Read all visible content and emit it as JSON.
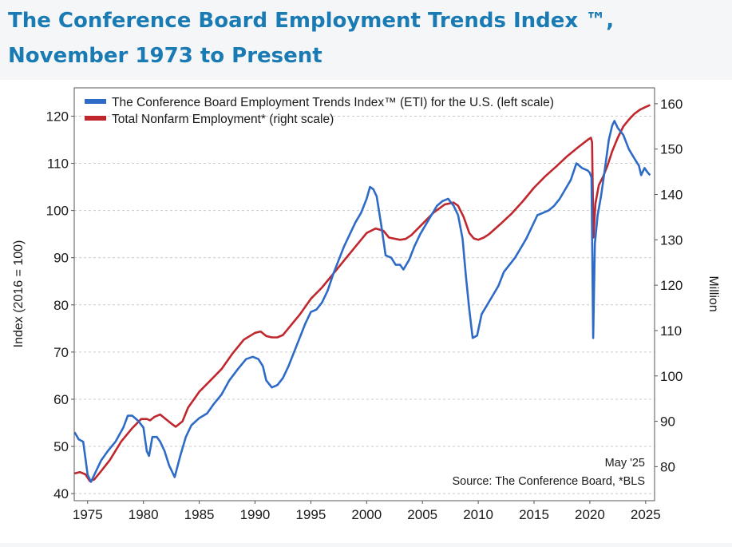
{
  "page": {
    "title": "The Conference Board Employment Trends Index ™, November 1973 to Present"
  },
  "colors": {
    "eti": "#2e6bc6",
    "nonfarm": "#c0272d",
    "title": "#1a7bb4"
  },
  "chart_data": {
    "type": "line",
    "title": "The Conference Board Employment Trends Index ™, November 1973 to Present",
    "ylabel_left": "Index (2016 = 100)",
    "ylabel_right": "Million",
    "xlim": [
      1973.8,
      2025.8
    ],
    "ylim_left": [
      38.5,
      126
    ],
    "ylim_right": [
      72.5,
      163.5
    ],
    "x_ticks": [
      1975,
      1980,
      1985,
      1990,
      1995,
      2000,
      2005,
      2010,
      2015,
      2020,
      2025
    ],
    "y_ticks_left": [
      40,
      50,
      60,
      70,
      80,
      90,
      100,
      110,
      120
    ],
    "y_ticks_right": [
      80,
      90,
      100,
      110,
      120,
      130,
      140,
      150,
      160
    ],
    "grid": "horizontal dashed",
    "legend_position": "top-left",
    "annotation_date": "May '25",
    "annotation_source": "Source: The Conference Board, *BLS",
    "series": [
      {
        "name": "The Conference Board Employment Trends Index™ (ETI) for the U.S. (left scale)",
        "axis": "left",
        "points": [
          [
            1973.83,
            53
          ],
          [
            1974.2,
            51.5
          ],
          [
            1974.6,
            51
          ],
          [
            1975.0,
            44
          ],
          [
            1975.3,
            42.5
          ],
          [
            1975.7,
            44.5
          ],
          [
            1976.2,
            47
          ],
          [
            1976.8,
            49
          ],
          [
            1977.5,
            51
          ],
          [
            1978.2,
            54
          ],
          [
            1978.6,
            56.5
          ],
          [
            1979.0,
            56.5
          ],
          [
            1979.5,
            55.5
          ],
          [
            1980.0,
            54
          ],
          [
            1980.3,
            49
          ],
          [
            1980.5,
            48
          ],
          [
            1980.8,
            52
          ],
          [
            1981.2,
            52
          ],
          [
            1981.5,
            51
          ],
          [
            1981.9,
            49
          ],
          [
            1982.3,
            46
          ],
          [
            1982.8,
            43.5
          ],
          [
            1983.3,
            48
          ],
          [
            1983.8,
            52
          ],
          [
            1984.3,
            54.5
          ],
          [
            1985.0,
            56
          ],
          [
            1985.7,
            57
          ],
          [
            1986.3,
            59
          ],
          [
            1987.0,
            61
          ],
          [
            1987.7,
            64
          ],
          [
            1988.5,
            66.5
          ],
          [
            1989.2,
            68.5
          ],
          [
            1989.8,
            69
          ],
          [
            1990.3,
            68.5
          ],
          [
            1990.7,
            67
          ],
          [
            1991.0,
            64
          ],
          [
            1991.5,
            62.5
          ],
          [
            1992.0,
            63
          ],
          [
            1992.5,
            64.5
          ],
          [
            1993.0,
            67
          ],
          [
            1993.5,
            70
          ],
          [
            1994.0,
            73
          ],
          [
            1994.5,
            76
          ],
          [
            1995.0,
            78.5
          ],
          [
            1995.5,
            79
          ],
          [
            1996.0,
            80.5
          ],
          [
            1996.5,
            83
          ],
          [
            1997.0,
            86.5
          ],
          [
            1997.5,
            89.5
          ],
          [
            1998.0,
            92.5
          ],
          [
            1998.5,
            95
          ],
          [
            1999.0,
            97.5
          ],
          [
            1999.5,
            99.5
          ],
          [
            2000.0,
            102.5
          ],
          [
            2000.3,
            105
          ],
          [
            2000.6,
            104.5
          ],
          [
            2000.9,
            103
          ],
          [
            2001.3,
            97
          ],
          [
            2001.7,
            90.5
          ],
          [
            2002.2,
            90
          ],
          [
            2002.6,
            88.5
          ],
          [
            2003.0,
            88.5
          ],
          [
            2003.3,
            87.5
          ],
          [
            2003.8,
            89.5
          ],
          [
            2004.3,
            92.5
          ],
          [
            2004.8,
            95
          ],
          [
            2005.3,
            97
          ],
          [
            2005.8,
            99
          ],
          [
            2006.3,
            101
          ],
          [
            2006.8,
            102
          ],
          [
            2007.3,
            102.5
          ],
          [
            2007.8,
            101
          ],
          [
            2008.2,
            99
          ],
          [
            2008.6,
            94
          ],
          [
            2008.9,
            86
          ],
          [
            2009.2,
            79
          ],
          [
            2009.5,
            73
          ],
          [
            2009.9,
            73.5
          ],
          [
            2010.3,
            78
          ],
          [
            2010.8,
            80
          ],
          [
            2011.3,
            82
          ],
          [
            2011.8,
            84
          ],
          [
            2012.3,
            87
          ],
          [
            2012.8,
            88.5
          ],
          [
            2013.3,
            90
          ],
          [
            2013.8,
            92
          ],
          [
            2014.3,
            94
          ],
          [
            2014.8,
            96.5
          ],
          [
            2015.3,
            99
          ],
          [
            2015.8,
            99.5
          ],
          [
            2016.3,
            100
          ],
          [
            2016.8,
            101
          ],
          [
            2017.3,
            102.5
          ],
          [
            2017.8,
            104.5
          ],
          [
            2018.3,
            106.5
          ],
          [
            2018.8,
            110
          ],
          [
            2019.3,
            109
          ],
          [
            2019.8,
            108.5
          ],
          [
            2020.0,
            108
          ],
          [
            2020.15,
            107
          ],
          [
            2020.3,
            73
          ],
          [
            2020.45,
            93
          ],
          [
            2020.7,
            99
          ],
          [
            2021.0,
            103
          ],
          [
            2021.3,
            108
          ],
          [
            2021.7,
            115
          ],
          [
            2022.0,
            118
          ],
          [
            2022.2,
            119
          ],
          [
            2022.5,
            117.5
          ],
          [
            2023.0,
            116
          ],
          [
            2023.5,
            113
          ],
          [
            2024.0,
            111
          ],
          [
            2024.4,
            109.5
          ],
          [
            2024.6,
            107.5
          ],
          [
            2024.9,
            109
          ],
          [
            2025.2,
            108
          ],
          [
            2025.4,
            107.5
          ]
        ]
      },
      {
        "name": "Total Nonfarm Employment* (right scale)",
        "axis": "right",
        "points": [
          [
            1973.83,
            78.5
          ],
          [
            1974.3,
            78.8
          ],
          [
            1974.8,
            78.3
          ],
          [
            1975.2,
            76.8
          ],
          [
            1975.6,
            77.2
          ],
          [
            1976.2,
            79
          ],
          [
            1977.0,
            81.5
          ],
          [
            1978.0,
            85.5
          ],
          [
            1979.0,
            88.5
          ],
          [
            1979.8,
            90.5
          ],
          [
            1980.3,
            90.5
          ],
          [
            1980.6,
            90.2
          ],
          [
            1981.0,
            91
          ],
          [
            1981.5,
            91.5
          ],
          [
            1982.0,
            90.5
          ],
          [
            1982.5,
            89.5
          ],
          [
            1982.9,
            88.8
          ],
          [
            1983.5,
            90
          ],
          [
            1984.0,
            93
          ],
          [
            1985.0,
            96.5
          ],
          [
            1986.0,
            99
          ],
          [
            1987.0,
            101.5
          ],
          [
            1988.0,
            105
          ],
          [
            1989.0,
            108
          ],
          [
            1990.0,
            109.5
          ],
          [
            1990.5,
            109.8
          ],
          [
            1991.0,
            108.8
          ],
          [
            1991.5,
            108.5
          ],
          [
            1992.0,
            108.5
          ],
          [
            1992.5,
            109
          ],
          [
            1993.0,
            110.5
          ],
          [
            1994.0,
            113.5
          ],
          [
            1995.0,
            117
          ],
          [
            1996.0,
            119.5
          ],
          [
            1997.0,
            122.5
          ],
          [
            1998.0,
            125.5
          ],
          [
            1999.0,
            128.5
          ],
          [
            2000.0,
            131.5
          ],
          [
            2000.8,
            132.5
          ],
          [
            2001.5,
            132
          ],
          [
            2002.0,
            130.5
          ],
          [
            2003.0,
            130
          ],
          [
            2003.5,
            130.2
          ],
          [
            2004.0,
            131
          ],
          [
            2005.0,
            133.5
          ],
          [
            2006.0,
            136
          ],
          [
            2007.0,
            137.8
          ],
          [
            2007.8,
            138.2
          ],
          [
            2008.2,
            137.5
          ],
          [
            2008.7,
            135
          ],
          [
            2009.2,
            131.5
          ],
          [
            2009.6,
            130.3
          ],
          [
            2010.0,
            130
          ],
          [
            2010.5,
            130.5
          ],
          [
            2011.0,
            131.3
          ],
          [
            2012.0,
            133.5
          ],
          [
            2013.0,
            135.8
          ],
          [
            2014.0,
            138.5
          ],
          [
            2015.0,
            141.5
          ],
          [
            2016.0,
            144
          ],
          [
            2017.0,
            146.2
          ],
          [
            2018.0,
            148.5
          ],
          [
            2019.0,
            150.5
          ],
          [
            2019.9,
            152.2
          ],
          [
            2020.1,
            152.5
          ],
          [
            2020.2,
            151.5
          ],
          [
            2020.32,
            130.5
          ],
          [
            2020.5,
            138
          ],
          [
            2020.8,
            142
          ],
          [
            2021.2,
            144
          ],
          [
            2021.6,
            146.5
          ],
          [
            2022.0,
            149.5
          ],
          [
            2022.5,
            152.5
          ],
          [
            2023.0,
            155
          ],
          [
            2023.5,
            156.5
          ],
          [
            2024.0,
            157.8
          ],
          [
            2024.5,
            158.7
          ],
          [
            2025.0,
            159.3
          ],
          [
            2025.4,
            159.7
          ]
        ]
      }
    ]
  }
}
